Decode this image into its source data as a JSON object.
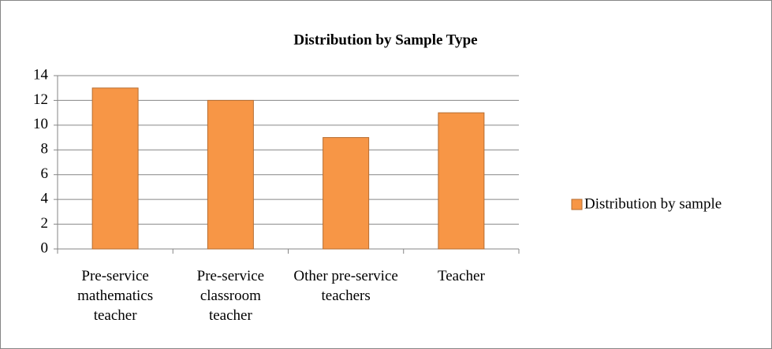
{
  "chart_data": {
    "type": "bar",
    "title": "Distribution by Sample Type",
    "categories": [
      "Pre-service mathematics teacher",
      "Pre-service classroom teacher",
      "Other pre-service teachers",
      "Teacher"
    ],
    "series": [
      {
        "name": "Distribution by sample",
        "color": "#f79646",
        "values": [
          13,
          12,
          9,
          11
        ]
      }
    ],
    "ylim": [
      0,
      14
    ],
    "yticks": [
      0,
      2,
      4,
      6,
      8,
      10,
      12,
      14
    ],
    "grid": true,
    "legend": "right"
  }
}
